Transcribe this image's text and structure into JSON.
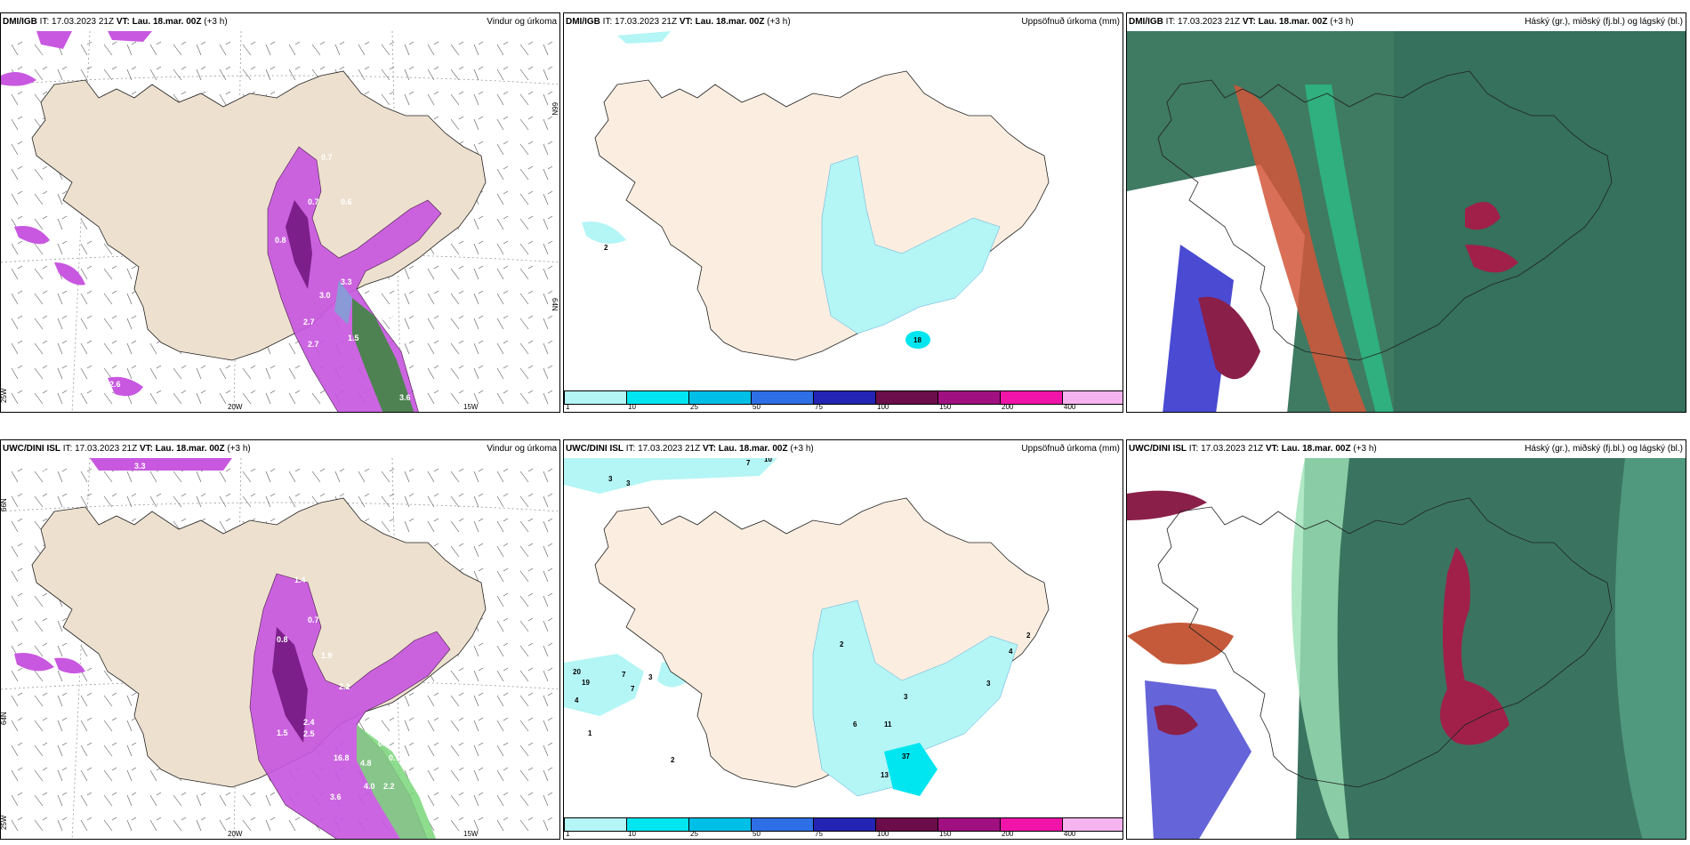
{
  "panels": {
    "wind_top": {
      "model": "DMI/IGB",
      "init_label": "IT: 17.03.2023 21Z",
      "vt_label": "VT: Lau. 18.mar. 00Z",
      "lead": "(+3 h)",
      "product": "Vindur og úrkoma"
    },
    "precip_top": {
      "model": "DMI/IGB",
      "init_label": "IT: 17.03.2023 21Z",
      "vt_label": "VT: Lau. 18.mar. 00Z",
      "lead": "(+3 h)",
      "product": "Uppsöfnuð úrkoma (mm)"
    },
    "cloud_top": {
      "model": "DMI/IGB",
      "init_label": "IT: 17.03.2023 21Z",
      "vt_label": "VT: Lau. 18.mar. 00Z",
      "lead": "(+3 h)",
      "product": "Háský (gr.), miðský (fj.bl.) og lágský (bl.)"
    },
    "wind_bot": {
      "model": "UWC/DINI ISL",
      "init_label": "IT: 17.03.2023 21Z",
      "vt_label": "VT: Lau. 18.mar. 00Z",
      "lead": "(+3 h)",
      "product": "Vindur og úrkoma"
    },
    "precip_bot": {
      "model": "UWC/DINI ISL",
      "init_label": "IT: 17.03.2023 21Z",
      "vt_label": "VT: Lau. 18.mar. 00Z",
      "lead": "(+3 h)",
      "product": "Uppsöfnuð úrkoma (mm)"
    },
    "cloud_bot": {
      "model": "UWC/DINI ISL",
      "init_label": "IT: 17.03.2023 21Z",
      "vt_label": "VT: Lau. 18.mar. 00Z",
      "lead": "(+3 h)",
      "product": "Háský (gr.), miðský (fj.bl.) og lágský (bl.)"
    }
  },
  "axes": {
    "lon_20": "20W",
    "lon_15": "15W",
    "lon_25": "25W",
    "lat_66": "66N",
    "lat_64": "64N"
  },
  "colorbar": {
    "ticks": [
      "1",
      "10",
      "25",
      "50",
      "75",
      "100",
      "150",
      "200",
      "400"
    ],
    "colors": [
      "#b4f5f5",
      "#00e6f0",
      "#00bfe6",
      "#2f6fe6",
      "#2424b4",
      "#6a0d4a",
      "#a01080",
      "#f014a8",
      "#f5b4f0"
    ]
  },
  "wind_top_labels": [
    "1.0",
    "2.3",
    "2.7",
    "0.7",
    "0.7",
    "0.8",
    "3.0",
    "3.3",
    "2.7",
    "1.5",
    "10.8",
    "3.6",
    "2.6",
    "0.6"
  ],
  "wind_bot_labels": [
    "0.8",
    "3.3",
    "1.4",
    "0.7",
    "0.8",
    "1.9",
    "2.2",
    "2.4",
    "2.5",
    "1.5",
    "16.8",
    "4.8",
    "0.7",
    "4.0",
    "3.6",
    "2.2",
    "0.5"
  ],
  "precip_top_labels": [
    "2",
    "18"
  ],
  "precip_bot_labels": [
    "7",
    "10",
    "3",
    "3",
    "20",
    "19",
    "7",
    "3",
    "7",
    "4",
    "1",
    "2",
    "2",
    "6",
    "11",
    "3",
    "37",
    "13",
    "4",
    "3",
    "2"
  ]
}
